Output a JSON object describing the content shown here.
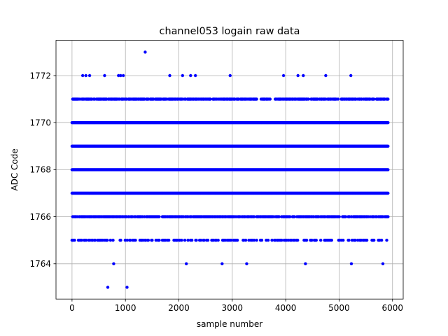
{
  "chart_data": {
    "type": "scatter",
    "title": "channel053 logain raw data",
    "xlabel": "sample number",
    "ylabel": "ADC Code",
    "xlim": [
      -300,
      6200
    ],
    "ylim": [
      1762.5,
      1773.5
    ],
    "xticks": [
      0,
      1000,
      2000,
      3000,
      4000,
      5000,
      6000
    ],
    "yticks": [
      1764,
      1766,
      1768,
      1770,
      1772
    ],
    "grid": true,
    "marker_color": "#0000ff",
    "n_samples": 5920,
    "series": [
      {
        "name": "",
        "dense_levels": [
          {
            "y": 1765,
            "x_range": [
              0,
              5920
            ],
            "density": "sparse"
          },
          {
            "y": 1766,
            "x_range": [
              0,
              5920
            ],
            "density": "medium"
          },
          {
            "y": 1767,
            "x_range": [
              0,
              5920
            ],
            "density": "dense"
          },
          {
            "y": 1768,
            "x_range": [
              0,
              5920
            ],
            "density": "dense"
          },
          {
            "y": 1769,
            "x_range": [
              0,
              5920
            ],
            "density": "dense"
          },
          {
            "y": 1770,
            "x_range": [
              0,
              5920
            ],
            "density": "dense"
          },
          {
            "y": 1771,
            "x_range": [
              0,
              5920
            ],
            "density": "medium"
          }
        ],
        "sparse_points": [
          {
            "x": 200,
            "y": 1772
          },
          {
            "x": 260,
            "y": 1772
          },
          {
            "x": 330,
            "y": 1772
          },
          {
            "x": 610,
            "y": 1772
          },
          {
            "x": 870,
            "y": 1772
          },
          {
            "x": 910,
            "y": 1772
          },
          {
            "x": 960,
            "y": 1772
          },
          {
            "x": 1830,
            "y": 1772
          },
          {
            "x": 2070,
            "y": 1772
          },
          {
            "x": 2220,
            "y": 1772
          },
          {
            "x": 2310,
            "y": 1772
          },
          {
            "x": 2960,
            "y": 1772
          },
          {
            "x": 3960,
            "y": 1772
          },
          {
            "x": 4230,
            "y": 1772
          },
          {
            "x": 4330,
            "y": 1772
          },
          {
            "x": 4750,
            "y": 1772
          },
          {
            "x": 5220,
            "y": 1772
          },
          {
            "x": 1370,
            "y": 1773
          },
          {
            "x": 780,
            "y": 1764
          },
          {
            "x": 2140,
            "y": 1764
          },
          {
            "x": 2810,
            "y": 1764
          },
          {
            "x": 3270,
            "y": 1764
          },
          {
            "x": 4370,
            "y": 1764
          },
          {
            "x": 5230,
            "y": 1764
          },
          {
            "x": 5820,
            "y": 1764
          },
          {
            "x": 670,
            "y": 1763
          },
          {
            "x": 1030,
            "y": 1763
          }
        ]
      }
    ]
  }
}
